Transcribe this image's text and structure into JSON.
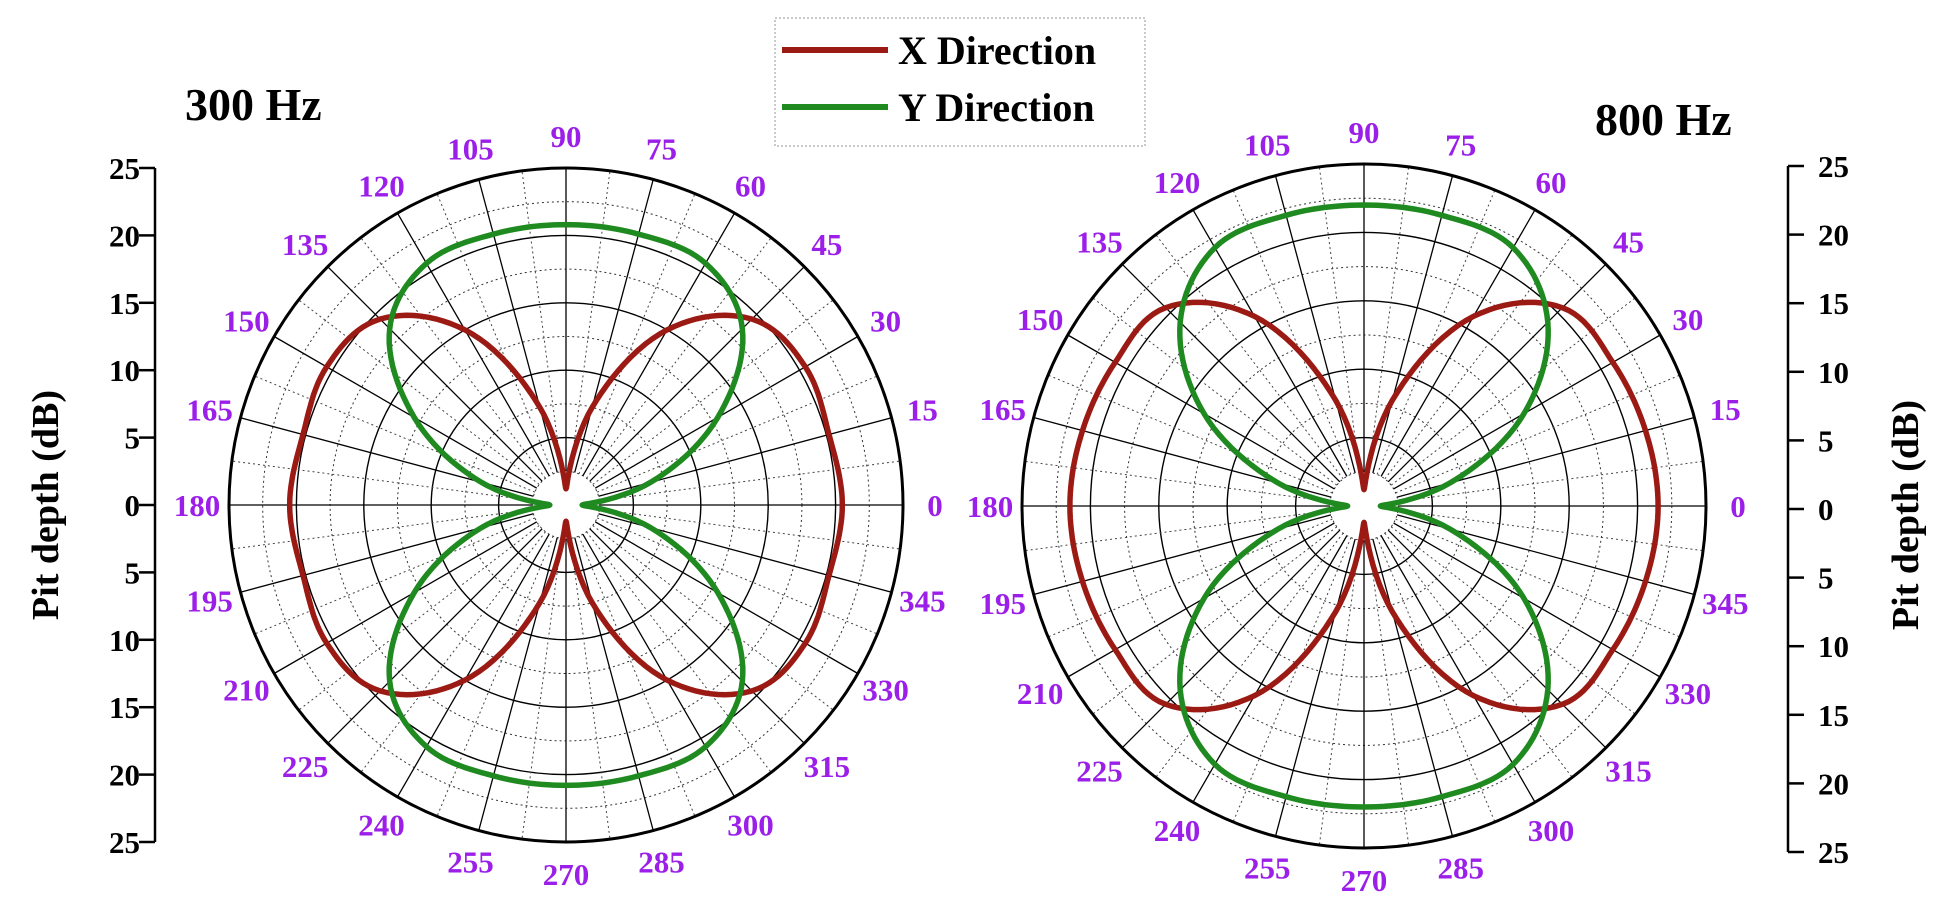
{
  "colors": {
    "x_direction": "#9b1a14",
    "y_direction": "#1f8a1f",
    "angle_labels": "#9b1fe8",
    "axes": "#000000"
  },
  "legend": {
    "entries": [
      "X Direction",
      "Y Direction"
    ],
    "placement": "top-center"
  },
  "chart_data": [
    {
      "type": "polar",
      "title": "300 Hz",
      "ylabel": "Pit depth (dB)",
      "rlim": [
        0,
        25
      ],
      "radial_ticks": [
        "25",
        "20",
        "15",
        "10",
        "5",
        "0",
        "5",
        "10",
        "15",
        "20",
        "25"
      ],
      "angle_ticks": [
        "0",
        "15",
        "30",
        "45",
        "60",
        "75",
        "90",
        "105",
        "120",
        "135",
        "150",
        "165",
        "180",
        "195",
        "210",
        "225",
        "240",
        "255",
        "270",
        "285",
        "300",
        "315",
        "330",
        "345"
      ],
      "grid": true,
      "theta": [
        0,
        15,
        30,
        45,
        60,
        75,
        90,
        105,
        120,
        135,
        150,
        165,
        180,
        195,
        210,
        225,
        240,
        255,
        270,
        285,
        300,
        315,
        330,
        345
      ],
      "series": [
        {
          "name": "X Direction",
          "values": [
            20.5,
            20.2,
            20.5,
            19.5,
            15.0,
            7.5,
            1.2,
            7.5,
            15.0,
            19.5,
            20.5,
            20.2,
            20.5,
            20.2,
            20.5,
            19.5,
            15.0,
            7.5,
            1.2,
            7.5,
            15.0,
            19.5,
            20.5,
            20.2
          ]
        },
        {
          "name": "Y Direction",
          "values": [
            1.2,
            6.5,
            13.0,
            18.5,
            20.7,
            20.8,
            20.8,
            20.8,
            20.7,
            18.5,
            13.0,
            6.5,
            1.2,
            6.5,
            13.0,
            18.5,
            20.7,
            20.8,
            20.8,
            20.8,
            20.7,
            18.5,
            13.0,
            6.5
          ]
        }
      ]
    },
    {
      "type": "polar",
      "title": "800 Hz",
      "ylabel": "Pit depth (dB)",
      "rlim": [
        0,
        25
      ],
      "radial_ticks": [
        "25",
        "20",
        "15",
        "10",
        "5",
        "0",
        "5",
        "10",
        "15",
        "20",
        "25"
      ],
      "angle_ticks": [
        "0",
        "15",
        "30",
        "45",
        "60",
        "75",
        "90",
        "105",
        "120",
        "135",
        "150",
        "165",
        "180",
        "195",
        "210",
        "225",
        "240",
        "255",
        "270",
        "285",
        "300",
        "315",
        "330",
        "345"
      ],
      "grid": true,
      "theta": [
        0,
        15,
        30,
        45,
        60,
        75,
        90,
        105,
        120,
        135,
        150,
        165,
        180,
        195,
        210,
        225,
        240,
        255,
        270,
        285,
        300,
        315,
        330,
        345
      ],
      "series": [
        {
          "name": "X Direction",
          "values": [
            21.5,
            21.3,
            21.0,
            20.5,
            16.0,
            8.0,
            1.2,
            8.0,
            16.0,
            20.5,
            21.0,
            21.3,
            21.5,
            21.3,
            21.0,
            20.5,
            16.0,
            8.0,
            1.2,
            8.0,
            16.0,
            20.5,
            21.0,
            21.3
          ]
        },
        {
          "name": "Y Direction",
          "values": [
            1.2,
            6.5,
            13.5,
            19.0,
            21.8,
            22.0,
            22.0,
            22.0,
            21.8,
            19.0,
            13.5,
            6.5,
            1.2,
            6.5,
            13.5,
            19.0,
            21.8,
            22.0,
            22.0,
            22.0,
            21.8,
            19.0,
            13.5,
            6.5
          ]
        }
      ]
    }
  ]
}
